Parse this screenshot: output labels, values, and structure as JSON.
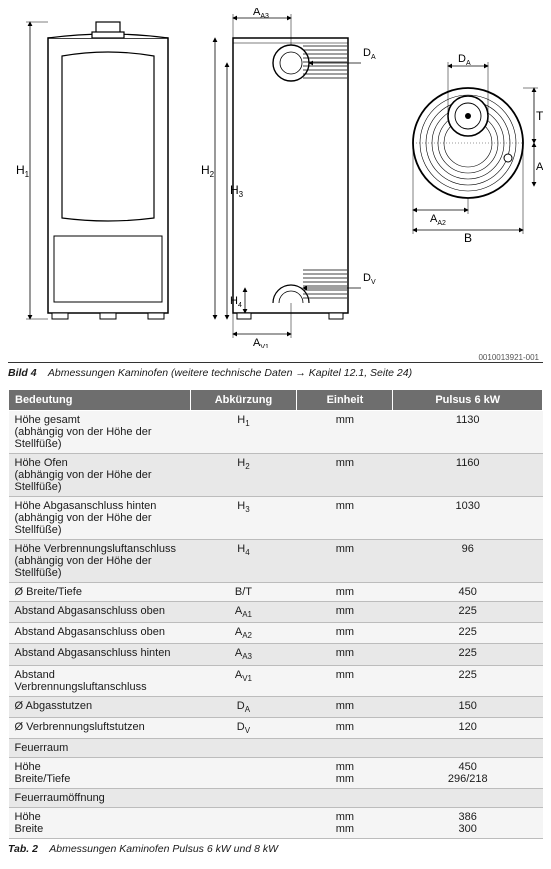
{
  "diagram": {
    "labels": {
      "H1": "H",
      "H1s": "1",
      "H2": "H",
      "H2s": "2",
      "H3": "H",
      "H3s": "3",
      "H4": "H",
      "H4s": "4",
      "AA1": "A",
      "AA1s": "A1",
      "AA2": "A",
      "AA2s": "A2",
      "AA3": "A",
      "AA3s": "A3",
      "AV1": "A",
      "AV1s": "V1",
      "DA": "D",
      "DAs": "A",
      "DV": "D",
      "DVs": "V",
      "B": "B",
      "T": "T"
    },
    "docid": "0010013921-001"
  },
  "caption": {
    "prefix": "Bild 4",
    "text": "Abmessungen Kaminofen (weitere technische Daten → Kapitel  12.1, Seite  24)"
  },
  "table": {
    "headers": {
      "b": "Bedeutung",
      "a": "Abkürzung",
      "u": "Einheit",
      "v": "Pulsus 6 kW"
    },
    "rows": [
      {
        "cls": "odd",
        "b": "Höhe gesamt",
        "bsub": "(abhängig von der Höhe der Stellfüße)",
        "a": "H<sub>1</sub>",
        "u": "mm",
        "v": "1130"
      },
      {
        "cls": "even",
        "b": "Höhe Ofen",
        "bsub": "(abhängig von der Höhe der Stellfüße)",
        "a": "H<sub>2</sub>",
        "u": "mm",
        "v": "1160"
      },
      {
        "cls": "odd",
        "b": "Höhe Abgasanschluss hinten",
        "bsub": "(abhängig von der Höhe der Stellfüße)",
        "a": "H<sub>3</sub>",
        "u": "mm",
        "v": "1030"
      },
      {
        "cls": "even",
        "b": "Höhe Verbrennungsluftanschluss",
        "bsub": "(abhängig von der Höhe der Stellfüße)",
        "a": "H<sub>4</sub>",
        "u": "mm",
        "v": "96"
      },
      {
        "cls": "odd",
        "b": "Ø  Breite/Tiefe",
        "bsub": "",
        "a": "B/T",
        "u": "mm",
        "v": "450"
      },
      {
        "cls": "even",
        "b": "Abstand Abgasanschluss oben",
        "bsub": "",
        "a": "A<sub>A1</sub>",
        "u": "mm",
        "v": "225"
      },
      {
        "cls": "odd",
        "b": "Abstand Abgasanschluss oben",
        "bsub": "",
        "a": "A<sub>A2</sub>",
        "u": "mm",
        "v": "225"
      },
      {
        "cls": "even",
        "b": "Abstand Abgasanschluss hinten",
        "bsub": "",
        "a": "A<sub>A3</sub>",
        "u": "mm",
        "v": "225"
      },
      {
        "cls": "odd",
        "b": "Abstand Verbrennungsluftanschluss",
        "bsub": "",
        "a": "A<sub>V1</sub>",
        "u": "mm",
        "v": "225"
      },
      {
        "cls": "even",
        "b": "Ø Abgasstutzen",
        "bsub": "",
        "a": "D<sub>A</sub>",
        "u": "mm",
        "v": "150"
      },
      {
        "cls": "odd",
        "b": "Ø Verbrennungsluftstutzen",
        "bsub": "",
        "a": "D<sub>V</sub>",
        "u": "mm",
        "v": "120"
      },
      {
        "cls": "even",
        "b": "Feuerraum",
        "bsub": "",
        "a": "",
        "u": "",
        "v": ""
      },
      {
        "cls": "odd",
        "b": "Höhe\nBreite/Tiefe",
        "bsub": "",
        "a": "",
        "u": "mm\nmm",
        "v": "450\n296/218"
      },
      {
        "cls": "even",
        "b": "Feuerraumöffnung",
        "bsub": "",
        "a": "",
        "u": "",
        "v": ""
      },
      {
        "cls": "odd",
        "b": "Höhe\nBreite",
        "bsub": "",
        "a": "",
        "u": "mm\nmm",
        "v": "386\n300"
      }
    ]
  },
  "tabcaption": {
    "prefix": "Tab. 2",
    "text": "Abmessungen Kaminofen Pulsus 6 kW und 8 kW"
  }
}
